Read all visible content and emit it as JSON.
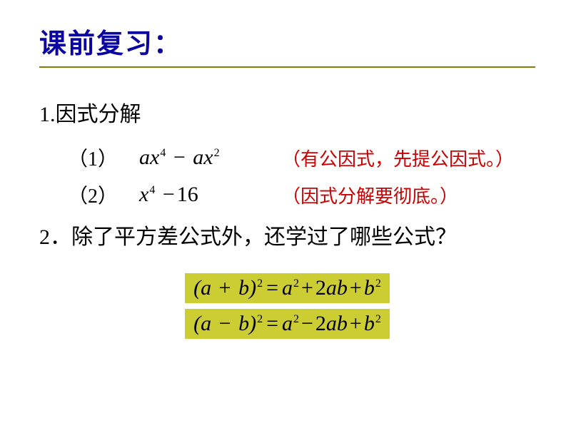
{
  "colors": {
    "background": "#ffffff",
    "title": "#0a03a1",
    "rule": "#808000",
    "body_text": "#000000",
    "note": "#cc0000",
    "formula_bg": "#cccc33",
    "formula_text": "#000000"
  },
  "fonts": {
    "title_size": 38,
    "body_size": 30,
    "note_size": 26,
    "sup_size": 16
  },
  "title": "课前复习：",
  "section1": {
    "heading": "1.因式分解",
    "items": [
      {
        "num": "（1）",
        "expr_html": "ax<span class='sup'>4</span> <span class='op'>−</span> ax<span class='sup'>2</span>",
        "note": "（有公因式，先提公因式。）"
      },
      {
        "num": "（2）",
        "expr_html": "x<span class='sup'>4</span> <span class='op'>−</span><span class='num'>16</span>",
        "note": "（因式分解要彻底。）"
      }
    ]
  },
  "section2": {
    "heading": "2．除了平方差公式外，还学过了哪些公式？",
    "formulas": [
      "(a <span class='op'>+</span> b)<span class='sup'>2</span><span class='eq'>=</span>a<span class='sup'>2</span><span class='op'>+</span><span class='num'>2</span>ab<span class='op'>+</span>b<span class='sup'>2</span>",
      "(a <span class='op'>−</span> b)<span class='sup'>2</span><span class='eq'>=</span>a<span class='sup'>2</span><span class='op'>−</span><span class='num'>2</span>ab<span class='op'>+</span>b<span class='sup'>2</span>"
    ]
  }
}
